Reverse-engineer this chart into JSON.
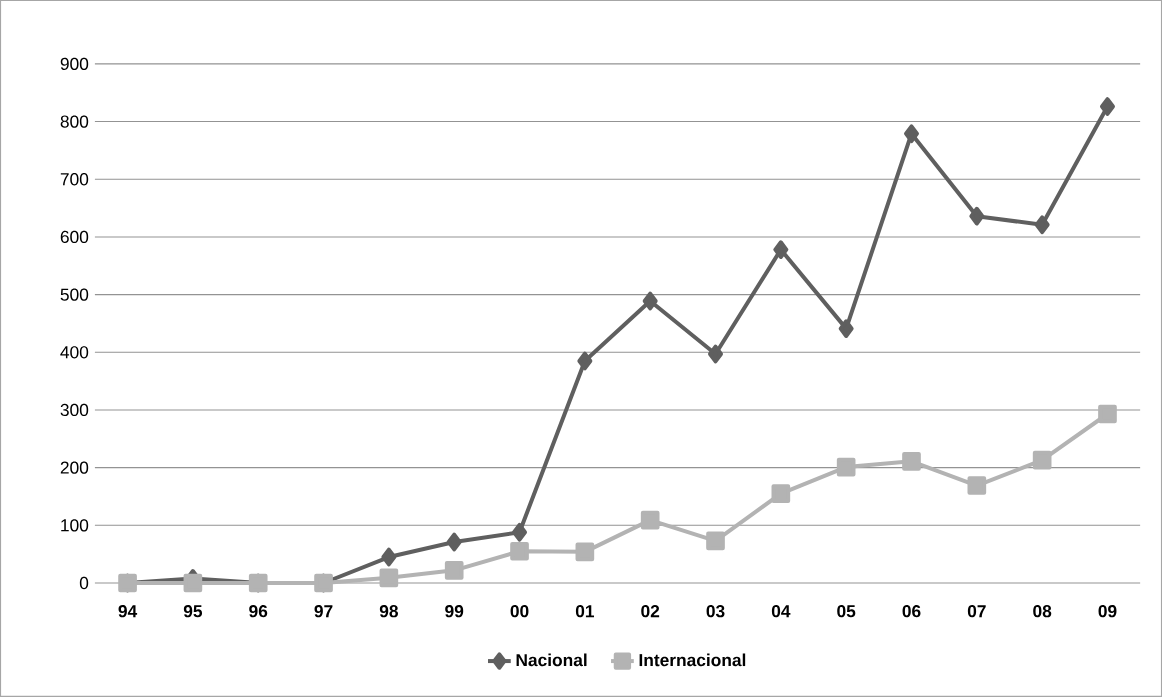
{
  "chart_data": {
    "type": "line",
    "categories": [
      "94",
      "95",
      "96",
      "97",
      "98",
      "99",
      "00",
      "01",
      "02",
      "03",
      "04",
      "05",
      "06",
      "07",
      "08",
      "09"
    ],
    "series": [
      {
        "name": "Nacional",
        "color": "#5f5f5f",
        "marker": "diamond",
        "values": [
          0,
          8,
          0,
          0,
          45,
          71,
          88,
          385,
          489,
          397,
          578,
          441,
          779,
          636,
          621,
          826
        ]
      },
      {
        "name": "Internacional",
        "color": "#b3b3b3",
        "marker": "square",
        "values": [
          0,
          0,
          0,
          0,
          9,
          22,
          55,
          54,
          109,
          73,
          155,
          201,
          211,
          169,
          213,
          293
        ]
      }
    ],
    "ylim": [
      0,
      900
    ],
    "yticks": [
      0,
      100,
      200,
      300,
      400,
      500,
      600,
      700,
      800,
      900
    ],
    "grid": "y",
    "legend": "bottom",
    "line_style": "solid"
  }
}
